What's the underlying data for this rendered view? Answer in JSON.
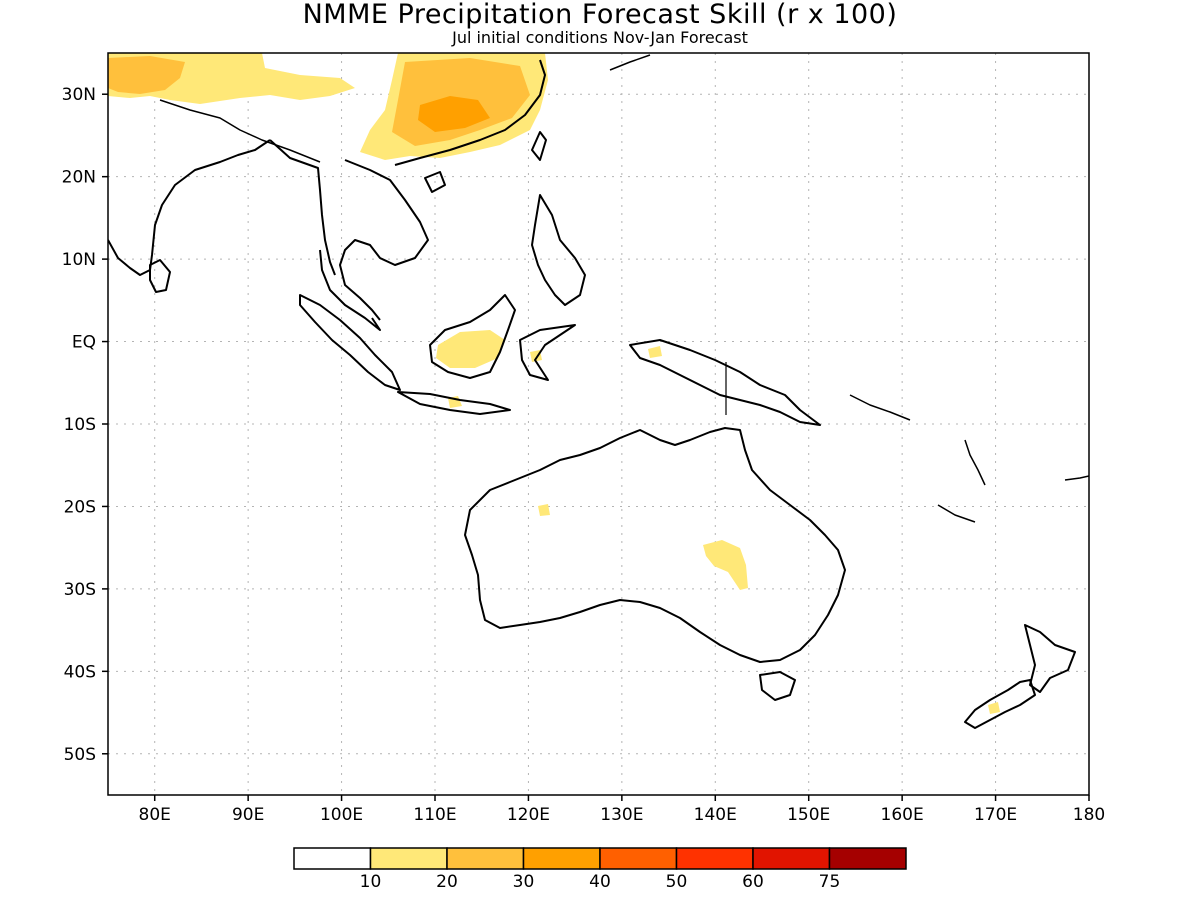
{
  "header": {
    "title": "NMME Precipitation Forecast Skill (r x 100)",
    "subtitle": "Jul initial conditions   Nov-Jan Forecast"
  },
  "map": {
    "projection": "equirectangular",
    "lon_range": [
      75,
      180
    ],
    "lat_range": [
      -55,
      35
    ],
    "grid": true,
    "lat_ticks": [
      {
        "value": 30,
        "label": "30N"
      },
      {
        "value": 20,
        "label": "20N"
      },
      {
        "value": 10,
        "label": "10N"
      },
      {
        "value": 0,
        "label": "EQ"
      },
      {
        "value": -10,
        "label": "10S"
      },
      {
        "value": -20,
        "label": "20S"
      },
      {
        "value": -30,
        "label": "30S"
      },
      {
        "value": -40,
        "label": "40S"
      },
      {
        "value": -50,
        "label": "50S"
      }
    ],
    "lon_ticks": [
      {
        "value": 80,
        "label": "80E"
      },
      {
        "value": 90,
        "label": "90E"
      },
      {
        "value": 100,
        "label": "100E"
      },
      {
        "value": 110,
        "label": "110E"
      },
      {
        "value": 120,
        "label": "120E"
      },
      {
        "value": 130,
        "label": "130E"
      },
      {
        "value": 140,
        "label": "140E"
      },
      {
        "value": 150,
        "label": "150E"
      },
      {
        "value": 160,
        "label": "160E"
      },
      {
        "value": 170,
        "label": "170E"
      },
      {
        "value": 180,
        "label": "180"
      }
    ]
  },
  "colorbar": {
    "colors": [
      "#ffffff",
      "#ffe878",
      "#ffc03c",
      "#ffa000",
      "#ff6000",
      "#ff3200",
      "#e11400",
      "#a50000"
    ],
    "labels": [
      "10",
      "20",
      "30",
      "40",
      "50",
      "60",
      "75"
    ]
  },
  "shading": [
    {
      "region": "Tibetan Plateau / Himalaya",
      "level": "10-20",
      "color": "#ffe878"
    },
    {
      "region": "Northwest India / Pakistan",
      "level": "20-30",
      "color": "#ffc03c"
    },
    {
      "region": "South China",
      "level": "20-30",
      "color": "#ffc03c"
    },
    {
      "region": "Borneo",
      "level": "10-20",
      "color": "#ffe878"
    },
    {
      "region": "Central Australia",
      "level": "10-20",
      "color": "#ffe878"
    },
    {
      "region": "Sulawesi",
      "level": "10-20",
      "color": "#ffe878"
    },
    {
      "region": "New Zealand South Island",
      "level": "10-20",
      "color": "#ffe878"
    }
  ]
}
